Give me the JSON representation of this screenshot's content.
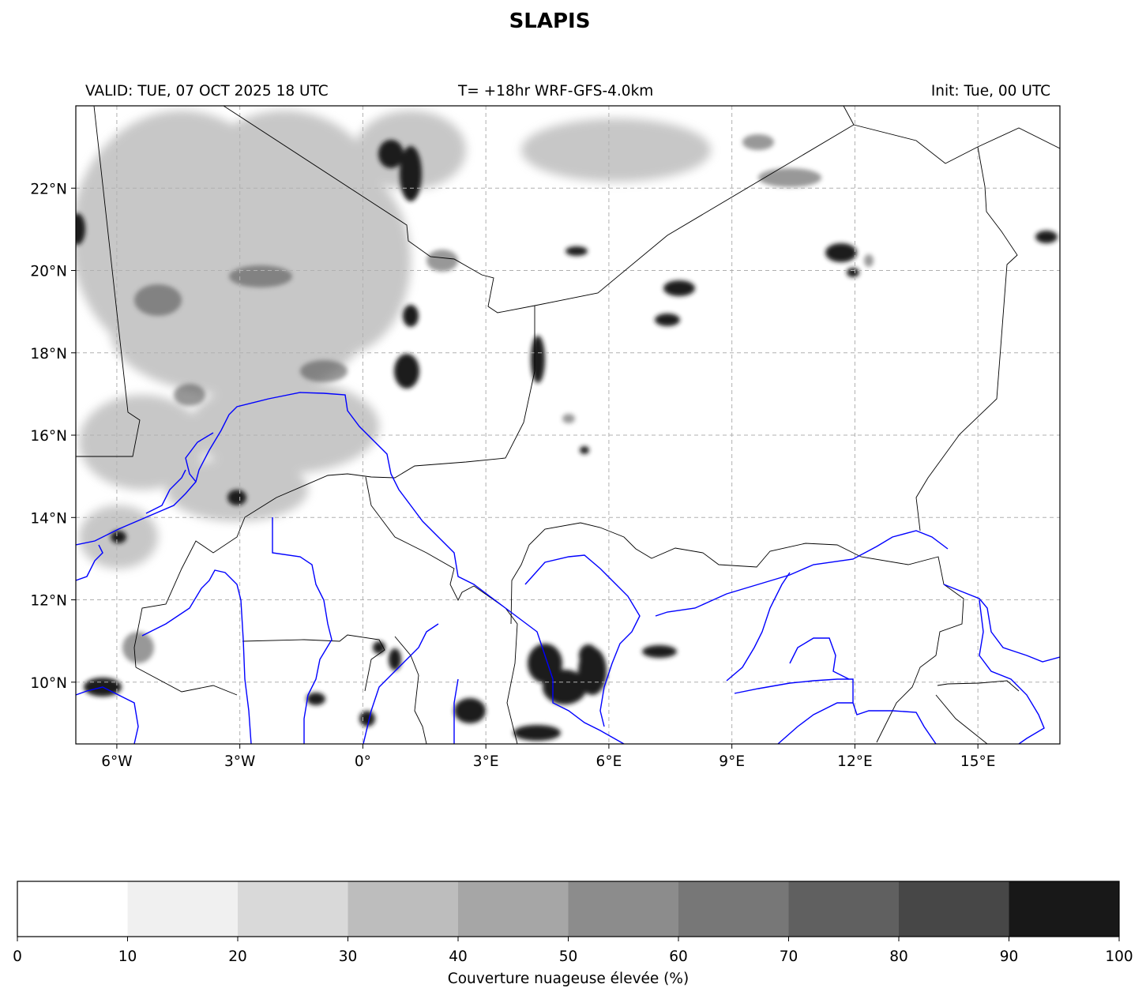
{
  "header": {
    "title": "SLAPIS",
    "valid": "VALID: TUE, 07 OCT 2025 18 UTC",
    "model": "T= +18hr WRF-GFS-4.0km",
    "init": "Init: Tue, 00 UTC"
  },
  "map": {
    "lon_range": [
      -7,
      17
    ],
    "lat_range": [
      8.5,
      24
    ],
    "lat_ticks": [
      {
        "value": 10,
        "label": "10°N"
      },
      {
        "value": 12,
        "label": "12°N"
      },
      {
        "value": 14,
        "label": "14°N"
      },
      {
        "value": 16,
        "label": "16°N"
      },
      {
        "value": 18,
        "label": "18°N"
      },
      {
        "value": 20,
        "label": "20°N"
      },
      {
        "value": 22,
        "label": "22°N"
      }
    ],
    "lon_ticks": [
      {
        "value": -6,
        "label": "6°W"
      },
      {
        "value": -3,
        "label": "3°W"
      },
      {
        "value": 0,
        "label": "0°"
      },
      {
        "value": 3,
        "label": "3°E"
      },
      {
        "value": 6,
        "label": "6°E"
      },
      {
        "value": 9,
        "label": "9°E"
      },
      {
        "value": 12,
        "label": "12°E"
      },
      {
        "value": 15,
        "label": "15°E"
      }
    ],
    "gridlines": true,
    "colors": {
      "borders": "#000000",
      "rivers": "#0000ff",
      "grid": "#b0b0b0"
    }
  },
  "colorbar": {
    "label": "Couverture nuageuse élevée (%)",
    "ticks": [
      "0",
      "10",
      "20",
      "30",
      "40",
      "50",
      "60",
      "70",
      "80",
      "90",
      "100"
    ],
    "colors": [
      "#ffffff",
      "#f0f0f0",
      "#d9d9d9",
      "#bdbdbd",
      "#a6a6a6",
      "#8c8c8c",
      "#777777",
      "#606060",
      "#474747",
      "#181818"
    ]
  }
}
